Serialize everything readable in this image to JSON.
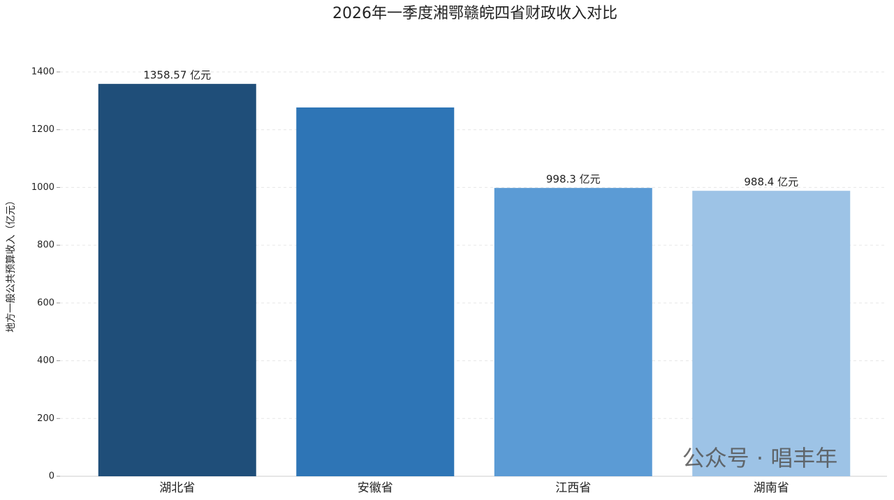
{
  "chart_data": {
    "type": "bar",
    "title": "2026年一季度湘鄂赣皖四省财政收入对比",
    "y_label": "地方一般公共预算收入（亿元）",
    "categories": [
      "湖北省",
      "安徽省",
      "江西省",
      "湖南省"
    ],
    "values": [
      1358.57,
      1277,
      998.3,
      988.4
    ],
    "value_labels": [
      "1358.57 亿元",
      null,
      "998.3 亿元",
      "988.4 亿元"
    ],
    "colors": [
      "#1f4e79",
      "#2e75b6",
      "#5b9bd5",
      "#9dc3e6"
    ],
    "ylim": [
      0,
      1400
    ],
    "yticks": [
      0,
      200,
      400,
      600,
      800,
      1000,
      1200,
      1400
    ],
    "grid": true,
    "watermark": "公众号 · 唱丰年"
  }
}
